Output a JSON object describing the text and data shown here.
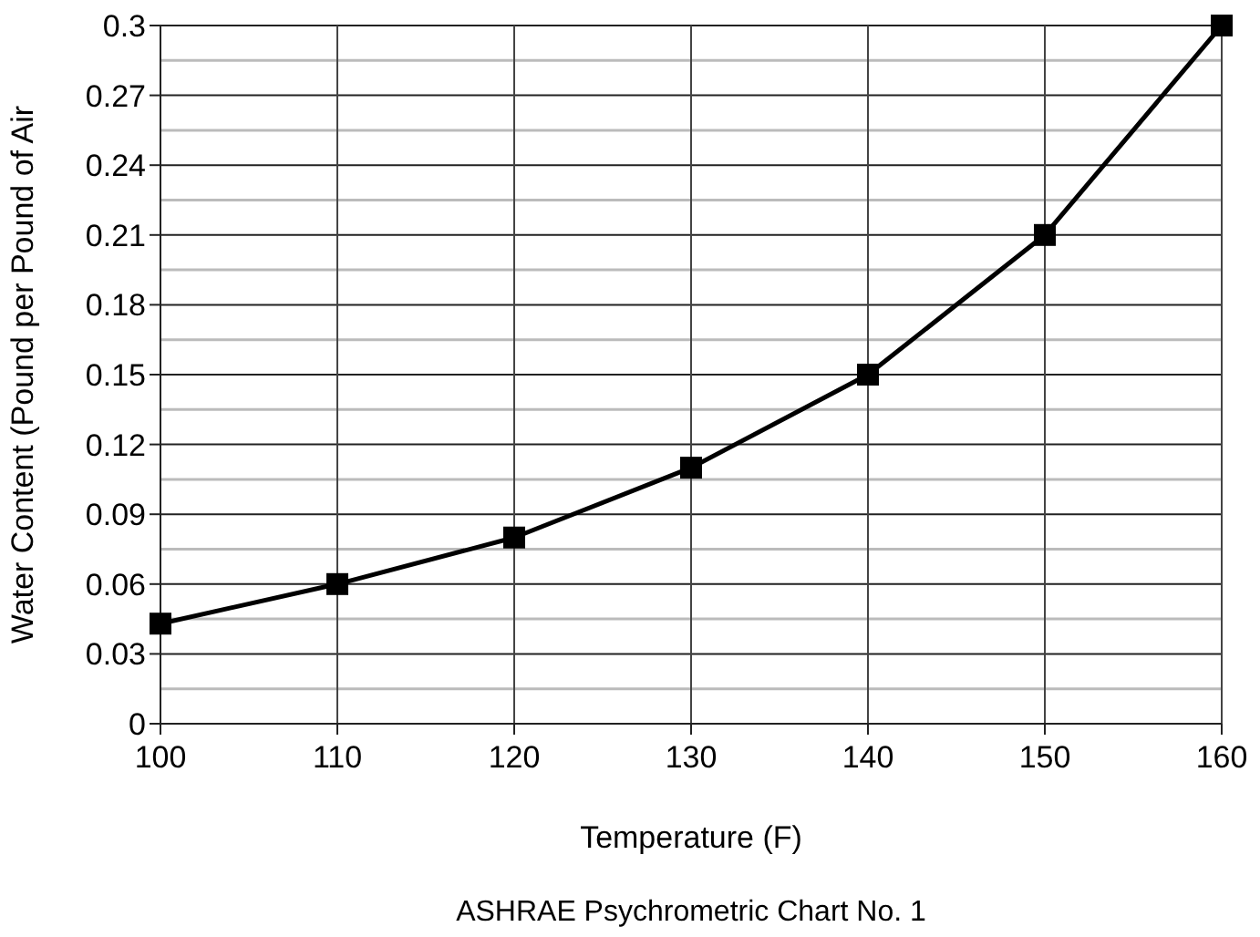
{
  "chart_data": {
    "type": "line",
    "xlabel": "Temperature (F)",
    "ylabel": "Water Content (Pound per Pound of Air",
    "annotations": [
      "ASHRAE Psychrometric Chart No. 1"
    ],
    "x": [
      100,
      110,
      120,
      130,
      140,
      150,
      160
    ],
    "series": [
      {
        "color": "#000000",
        "values": [
          0.043,
          0.06,
          0.08,
          0.11,
          0.15,
          0.21,
          0.3
        ]
      }
    ],
    "xlim": [
      100,
      160
    ],
    "xticks": [
      100,
      110,
      120,
      130,
      140,
      150,
      160
    ],
    "ylim": [
      0,
      0.3
    ],
    "yticks": [
      0,
      0.03,
      0.06,
      0.09,
      0.12,
      0.15,
      0.18,
      0.21,
      0.24,
      0.27,
      0.3
    ],
    "grid": true,
    "marker": "square",
    "line_style": "solid"
  }
}
